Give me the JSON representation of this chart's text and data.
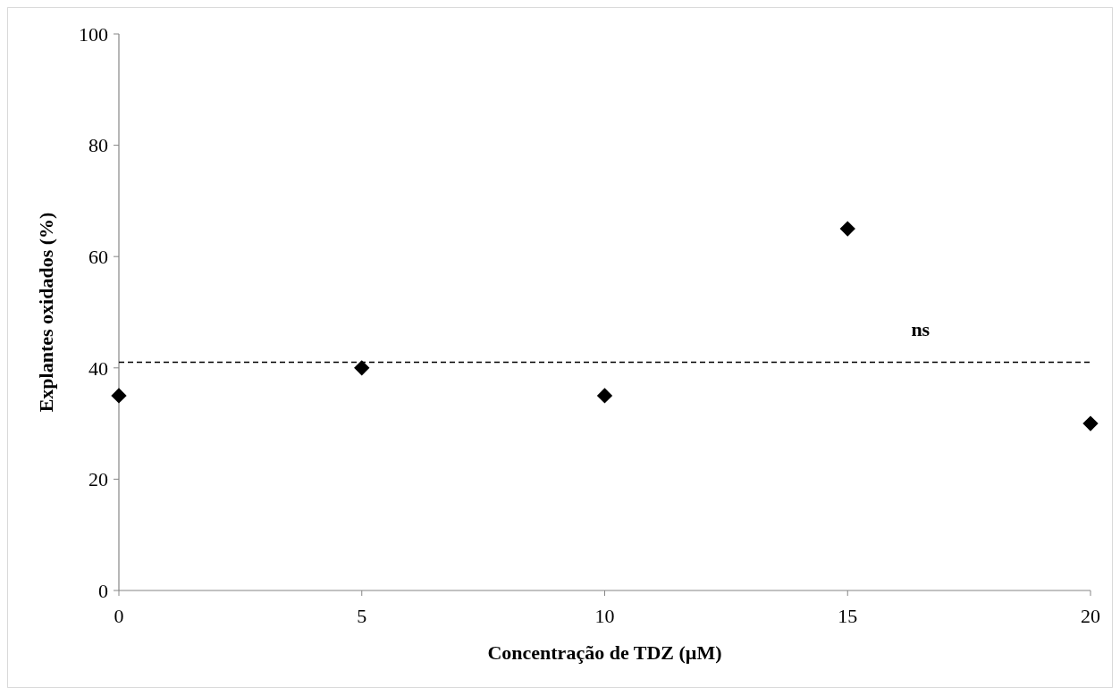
{
  "chart_data": {
    "type": "scatter",
    "xlabel": "Concentração de TDZ (µM)",
    "ylabel": "Explantes oxidados (%)",
    "x": [
      0,
      5,
      10,
      15,
      20
    ],
    "series": [
      {
        "color": "#000000",
        "values": [
          35,
          40,
          35,
          65,
          30
        ]
      }
    ],
    "xlim": [
      0,
      20
    ],
    "xticks": [
      0,
      5,
      10,
      15,
      20
    ],
    "ylim": [
      0,
      100
    ],
    "yticks": [
      0,
      20,
      40,
      60,
      80,
      100
    ],
    "marker": "diamond",
    "grid": false,
    "ref_lines": [
      {
        "axis": "y",
        "value": 41,
        "color": "#000000",
        "line_style": "dashed"
      }
    ],
    "annotations": [
      "ns"
    ]
  }
}
